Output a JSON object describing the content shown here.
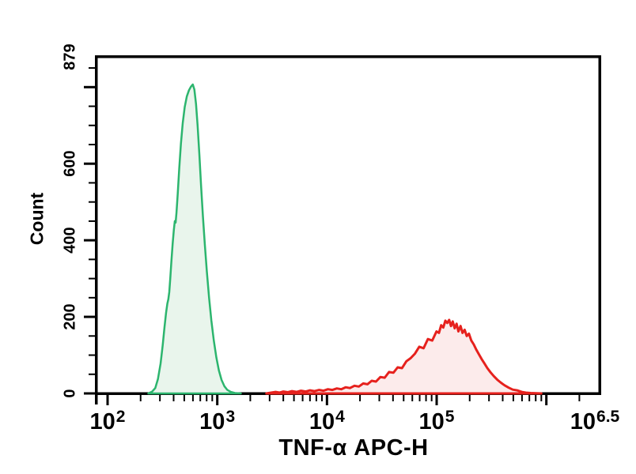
{
  "colors": {
    "axis": "#000000",
    "text": "#000000",
    "green_line": "#2cb56e",
    "green_fill": "#e9f5ec",
    "red_line": "#e6211d",
    "red_fill": "#fcebeb",
    "background": "#ffffff"
  },
  "chart_data": {
    "type": "area",
    "subtype": "flow-cytometry-histogram",
    "title": "",
    "xlabel": "TNF-α APC-H",
    "ylabel": "Count",
    "x_scale": "log10",
    "x_range": [
      100,
      3162278
    ],
    "y_range": [
      0,
      879
    ],
    "grid": false,
    "legend": false,
    "x_axis": {
      "label": "TNF-α APC-H",
      "major_ticks": [
        {
          "value": 100,
          "mantissa": "10",
          "exponent": "2",
          "show_label": true
        },
        {
          "value": 1000,
          "mantissa": "10",
          "exponent": "3",
          "show_label": true
        },
        {
          "value": 10000,
          "mantissa": "10",
          "exponent": "4",
          "show_label": true
        },
        {
          "value": 100000,
          "mantissa": "10",
          "exponent": "5",
          "show_label": true
        },
        {
          "value": 1000000,
          "mantissa": "10",
          "exponent": "6",
          "show_label": false
        },
        {
          "value": 3162278,
          "mantissa": "10",
          "exponent": "6.5",
          "show_label": true,
          "is_axis_end": true
        }
      ],
      "minor_ticks": [
        200,
        300,
        400,
        500,
        600,
        700,
        800,
        900,
        2000,
        3000,
        4000,
        5000,
        6000,
        7000,
        8000,
        9000,
        20000,
        30000,
        40000,
        50000,
        60000,
        70000,
        80000,
        90000,
        200000,
        300000,
        400000,
        500000,
        600000,
        700000,
        800000,
        900000,
        2000000
      ]
    },
    "y_axis": {
      "label": "Count",
      "major_ticks": [
        0,
        200,
        400,
        600,
        800
      ],
      "minor_ticks": [
        50,
        100,
        150,
        250,
        300,
        350,
        450,
        500,
        550,
        650,
        700,
        750,
        850
      ],
      "labels": [
        {
          "value": 0,
          "text": "0"
        },
        {
          "value": 200,
          "text": "200"
        },
        {
          "value": 400,
          "text": "400"
        },
        {
          "value": 600,
          "text": "600"
        },
        {
          "value": 879,
          "text": "879"
        }
      ]
    },
    "series": [
      {
        "name": "green",
        "line_color": "#2cb56e",
        "fill_color": "#e9f5ec",
        "line_width": 2.5,
        "points": [
          [
            235,
            0
          ],
          [
            255,
            5
          ],
          [
            272,
            14
          ],
          [
            288,
            38
          ],
          [
            304,
            78
          ],
          [
            318,
            126
          ],
          [
            330,
            172
          ],
          [
            341,
            210
          ],
          [
            351,
            235
          ],
          [
            358,
            246
          ],
          [
            365,
            265
          ],
          [
            373,
            302
          ],
          [
            382,
            346
          ],
          [
            392,
            392
          ],
          [
            402,
            428
          ],
          [
            410,
            450
          ],
          [
            417,
            446
          ],
          [
            425,
            472
          ],
          [
            436,
            522
          ],
          [
            450,
            588
          ],
          [
            466,
            652
          ],
          [
            484,
            706
          ],
          [
            505,
            748
          ],
          [
            528,
            776
          ],
          [
            552,
            792
          ],
          [
            575,
            801
          ],
          [
            598,
            807
          ],
          [
            618,
            794
          ],
          [
            640,
            756
          ],
          [
            662,
            700
          ],
          [
            686,
            625
          ],
          [
            712,
            542
          ],
          [
            740,
            463
          ],
          [
            770,
            390
          ],
          [
            804,
            318
          ],
          [
            842,
            250
          ],
          [
            884,
            190
          ],
          [
            930,
            138
          ],
          [
            980,
            94
          ],
          [
            1035,
            60
          ],
          [
            1095,
            35
          ],
          [
            1160,
            19
          ],
          [
            1235,
            9
          ],
          [
            1330,
            4
          ],
          [
            1450,
            1
          ],
          [
            1640,
            0
          ]
        ]
      },
      {
        "name": "red",
        "line_color": "#e6211d",
        "fill_color": "#fcebeb",
        "line_width": 3,
        "points": [
          [
            2800,
            0
          ],
          [
            3100,
            2
          ],
          [
            3400,
            4
          ],
          [
            3700,
            2
          ],
          [
            4000,
            5
          ],
          [
            4400,
            3
          ],
          [
            4800,
            6
          ],
          [
            5300,
            4
          ],
          [
            5800,
            7
          ],
          [
            6400,
            5
          ],
          [
            7000,
            8
          ],
          [
            7700,
            6
          ],
          [
            8500,
            9
          ],
          [
            9300,
            7
          ],
          [
            10200,
            11
          ],
          [
            11200,
            9
          ],
          [
            12300,
            13
          ],
          [
            13500,
            11
          ],
          [
            14800,
            16
          ],
          [
            16200,
            14
          ],
          [
            17800,
            20
          ],
          [
            19500,
            18
          ],
          [
            21400,
            26
          ],
          [
            23400,
            24
          ],
          [
            25600,
            33
          ],
          [
            28000,
            31
          ],
          [
            30700,
            43
          ],
          [
            33600,
            41
          ],
          [
            36800,
            56
          ],
          [
            40300,
            54
          ],
          [
            44100,
            68
          ],
          [
            48300,
            66
          ],
          [
            52900,
            84
          ],
          [
            57900,
            92
          ],
          [
            63400,
            104
          ],
          [
            69400,
            122
          ],
          [
            76000,
            118
          ],
          [
            83200,
            142
          ],
          [
            91100,
            138
          ],
          [
            99700,
            162
          ],
          [
            105000,
            158
          ],
          [
            110000,
            178
          ],
          [
            115000,
            172
          ],
          [
            120000,
            190
          ],
          [
            125000,
            184
          ],
          [
            130000,
            192
          ],
          [
            135000,
            176
          ],
          [
            140000,
            188
          ],
          [
            146000,
            170
          ],
          [
            152000,
            182
          ],
          [
            158000,
            162
          ],
          [
            165000,
            176
          ],
          [
            172000,
            158
          ],
          [
            180000,
            166
          ],
          [
            188000,
            150
          ],
          [
            197000,
            156
          ],
          [
            207000,
            138
          ],
          [
            218000,
            128
          ],
          [
            230000,
            114
          ],
          [
            243000,
            102
          ],
          [
            257000,
            90
          ],
          [
            273000,
            78
          ],
          [
            290000,
            66
          ],
          [
            310000,
            55
          ],
          [
            332000,
            45
          ],
          [
            357000,
            36
          ],
          [
            385000,
            28
          ],
          [
            417000,
            21
          ],
          [
            453000,
            15
          ],
          [
            494000,
            10
          ],
          [
            541000,
            8
          ],
          [
            596000,
            4
          ],
          [
            650000,
            2
          ],
          [
            720000,
            1
          ],
          [
            900000,
            0
          ]
        ]
      }
    ]
  }
}
